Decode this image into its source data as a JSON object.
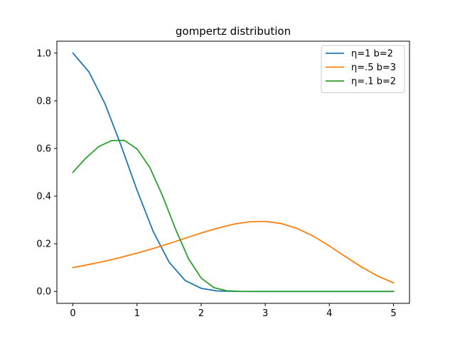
{
  "chart_data": {
    "type": "line",
    "title": "gompertz distribution",
    "xlabel": "",
    "ylabel": "",
    "xlim": [
      -0.25,
      5.25
    ],
    "ylim": [
      -0.05,
      1.05
    ],
    "xticks": [
      0,
      1,
      2,
      3,
      4,
      5
    ],
    "yticks": [
      0.0,
      0.2,
      0.4,
      0.6,
      0.8,
      1.0
    ],
    "ytick_labels": [
      "0.0",
      "0.2",
      "0.4",
      "0.6",
      "0.8",
      "1.0"
    ],
    "grid": false,
    "legend_position": "top-right",
    "series": [
      {
        "name": "η=1 b=2",
        "color": "#1f77b4",
        "x": [
          0,
          0.25,
          0.5,
          0.75,
          1.0,
          1.25,
          1.5,
          1.75,
          2.0,
          2.25,
          2.5,
          2.75,
          3.0,
          3.5,
          4.0,
          4.5,
          5.0
        ],
        "y": [
          1.0,
          0.921,
          0.788,
          0.613,
          0.425,
          0.253,
          0.123,
          0.046,
          0.013,
          0.002,
          0.0003,
          0.0,
          0.0,
          0.0,
          0.0,
          0.0,
          0.0
        ]
      },
      {
        "name": "η=.5 b=3",
        "color": "#ff7f0e",
        "x": [
          0,
          0.25,
          0.5,
          0.75,
          1.0,
          1.25,
          1.5,
          1.75,
          2.0,
          2.25,
          2.5,
          2.75,
          3.0,
          3.25,
          3.5,
          3.75,
          4.0,
          4.25,
          4.5,
          4.75,
          5.0
        ],
        "y": [
          0.1,
          0.113,
          0.127,
          0.143,
          0.161,
          0.18,
          0.201,
          0.223,
          0.245,
          0.265,
          0.282,
          0.292,
          0.294,
          0.285,
          0.264,
          0.232,
          0.191,
          0.146,
          0.103,
          0.065,
          0.036
        ]
      },
      {
        "name": "η=.1 b=2",
        "color": "#2ca02c",
        "x": [
          0,
          0.2,
          0.4,
          0.6,
          0.8,
          1.0,
          1.2,
          1.4,
          1.6,
          1.8,
          2.0,
          2.2,
          2.4,
          2.6,
          2.8,
          3.0,
          3.5,
          4.0,
          4.5,
          5.0
        ],
        "y": [
          0.5,
          0.559,
          0.607,
          0.633,
          0.634,
          0.598,
          0.52,
          0.4,
          0.262,
          0.139,
          0.056,
          0.016,
          0.003,
          0.0004,
          0.0,
          0.0,
          0.0,
          0.0,
          0.0,
          0.0
        ]
      }
    ]
  }
}
